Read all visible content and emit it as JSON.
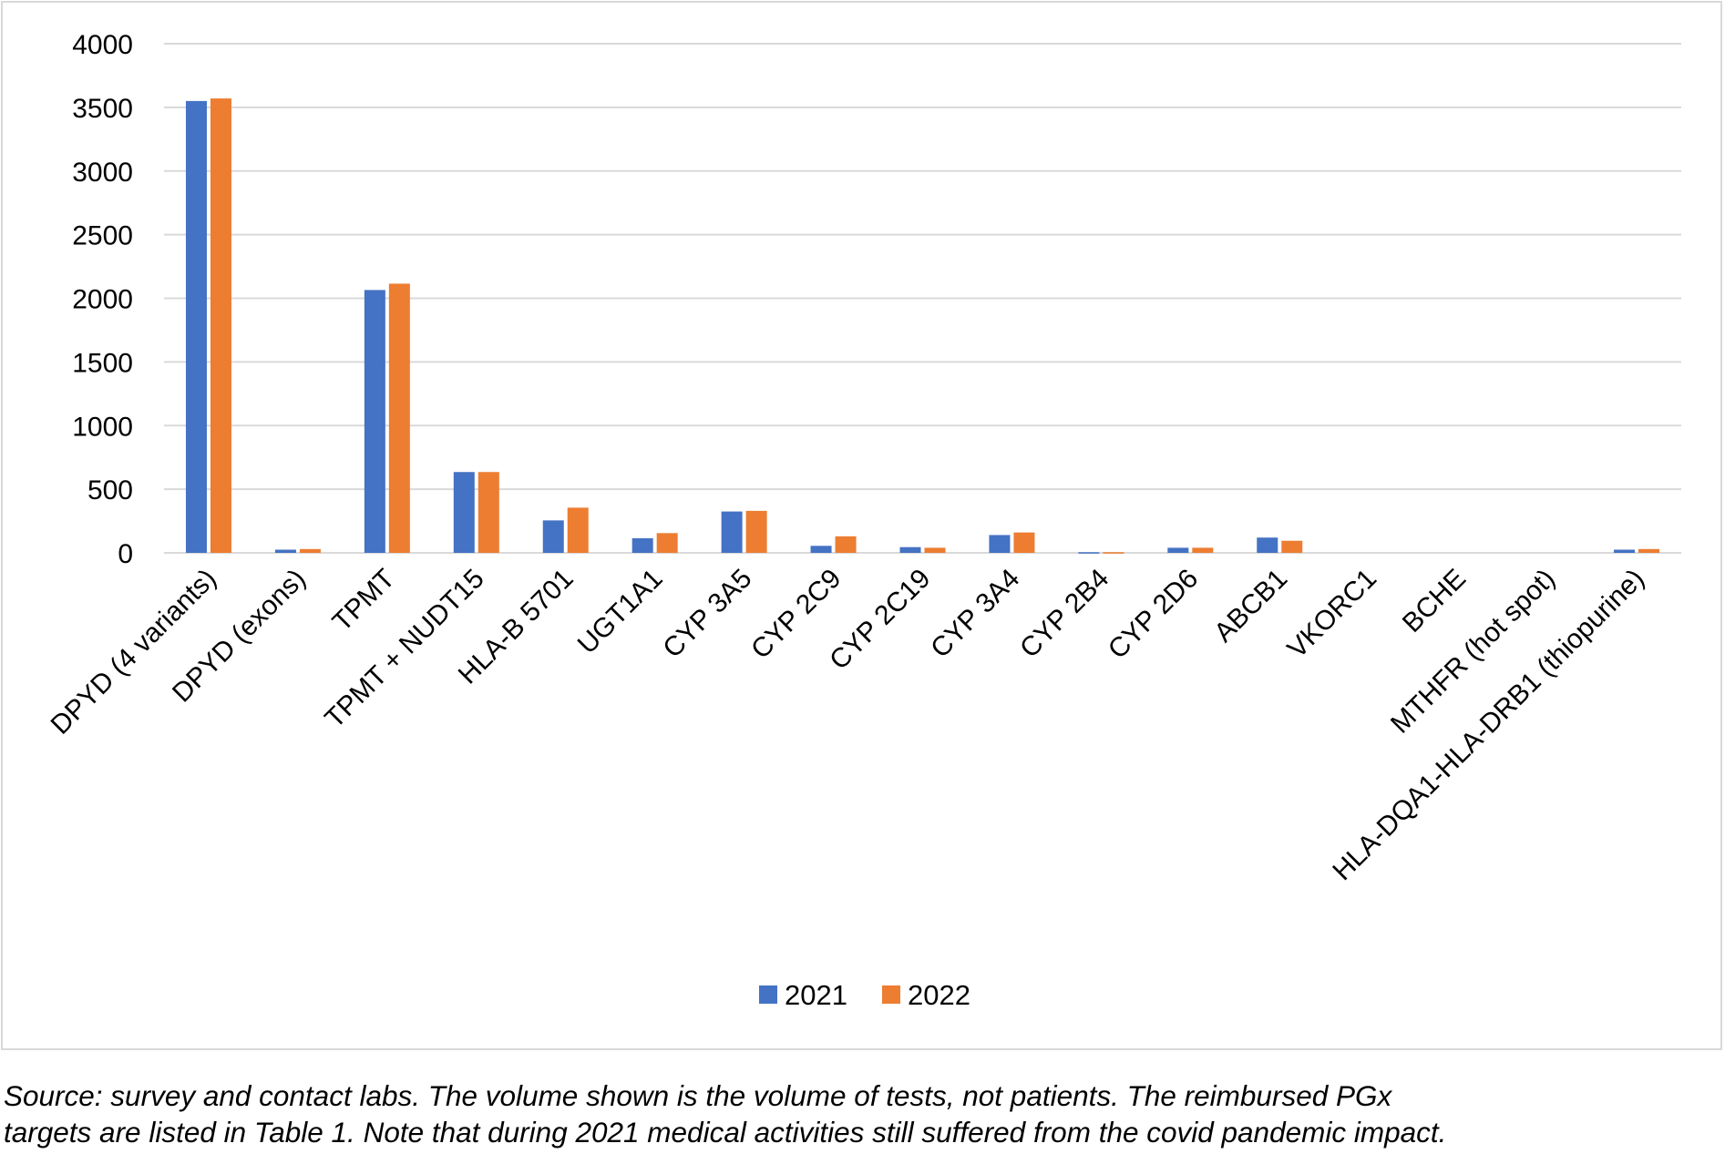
{
  "chart_data": {
    "type": "bar",
    "title": "",
    "xlabel": "",
    "ylabel": "",
    "ylim": [
      0,
      4000
    ],
    "yticks": [
      0,
      500,
      1000,
      1500,
      2000,
      2500,
      3000,
      3500,
      4000
    ],
    "grid": true,
    "legend_position": "bottom",
    "categories": [
      "DPYD (4 variants)",
      "DPYD (exons)",
      "TPMT",
      "TPMT + NUDT15",
      "HLA-B 5701",
      "UGT1A1",
      "CYP 3A5",
      "CYP 2C9",
      "CYP 2C19",
      "CYP 3A4",
      "CYP 2B4",
      "CYP 2D6",
      "ABCB1",
      "VKORC1",
      "BCHE",
      "MTHFR (hot spot)",
      "HLA-DQA1-HLA-DRB1 (thiopurine)"
    ],
    "series": [
      {
        "name": "2021",
        "color": "#4472c4",
        "values": [
          3550,
          25,
          2065,
          635,
          255,
          115,
          325,
          55,
          45,
          140,
          5,
          40,
          120,
          0,
          0,
          0,
          25
        ]
      },
      {
        "name": "2022",
        "color": "#ed7d31",
        "values": [
          3570,
          30,
          2115,
          635,
          355,
          155,
          330,
          130,
          40,
          160,
          5,
          40,
          95,
          0,
          0,
          0,
          30
        ]
      }
    ]
  },
  "caption": {
    "line1": "Source: survey and contact labs. The volume shown is the volume of tests, not patients. The reimbursed PGx",
    "line2": "targets are listed in Table 1. Note that during 2021 medical activities still suffered from the covid pandemic impact."
  }
}
